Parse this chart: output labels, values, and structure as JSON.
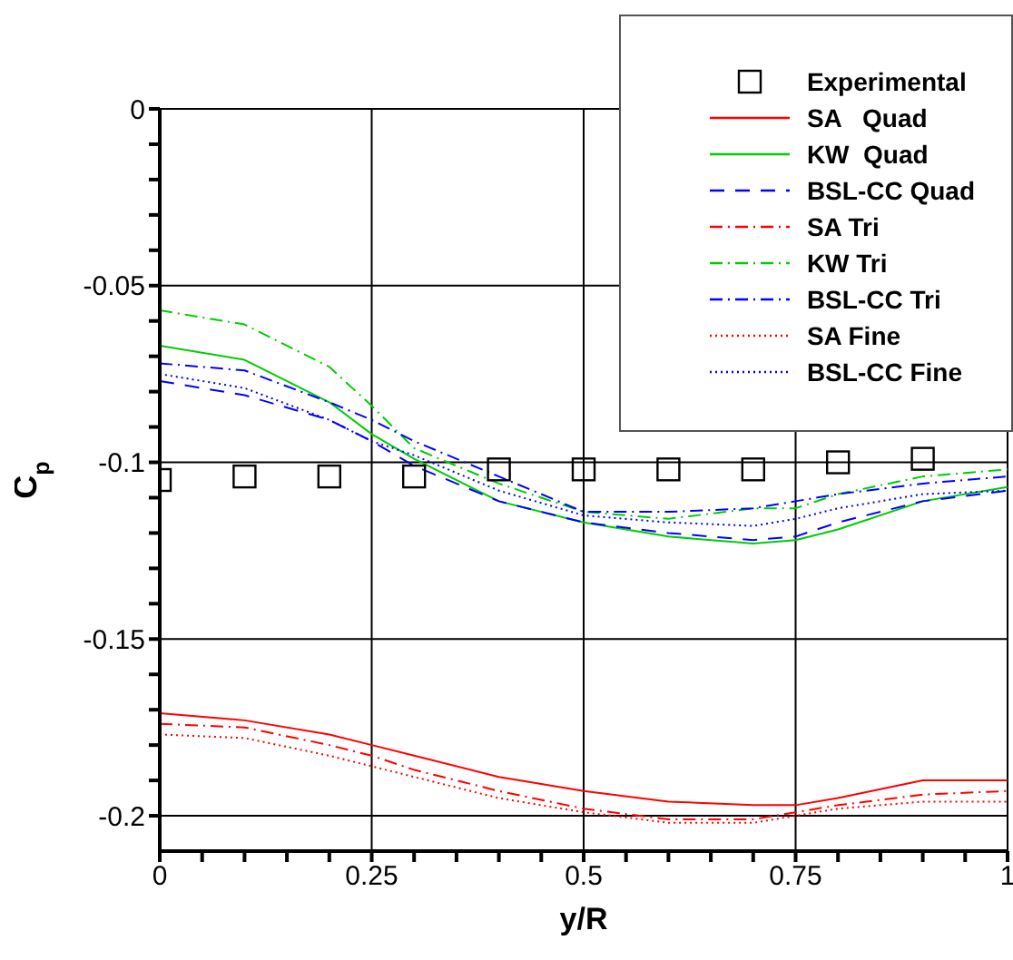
{
  "chart_data": {
    "type": "line",
    "xlabel": "y/R",
    "ylabel": "C$_{p}$",
    "x": [
      0,
      0.1,
      0.2,
      0.25,
      0.3,
      0.4,
      0.5,
      0.6,
      0.7,
      0.75,
      0.8,
      0.9,
      1
    ],
    "xlim": [
      0,
      1
    ],
    "xticks": [
      0,
      {
        "value": 0.05,
        "label": null
      },
      {
        "value": 0.1,
        "label": null
      },
      {
        "value": 0.15,
        "label": null
      },
      {
        "value": 0.2,
        "label": null
      },
      0.25,
      {
        "value": 0.3,
        "label": null
      },
      {
        "value": 0.35,
        "label": null
      },
      {
        "value": 0.4,
        "label": null
      },
      {
        "value": 0.45,
        "label": null
      },
      0.5,
      {
        "value": 0.55,
        "label": null
      },
      {
        "value": 0.6,
        "label": null
      },
      {
        "value": 0.65,
        "label": null
      },
      {
        "value": 0.7,
        "label": null
      },
      0.75,
      {
        "value": 0.8,
        "label": null
      },
      {
        "value": 0.85,
        "label": null
      },
      {
        "value": 0.9,
        "label": null
      },
      {
        "value": 0.95,
        "label": null
      },
      1
    ],
    "ylim": [
      -0.21,
      0
    ],
    "yticks": [
      0,
      {
        "value": -0.01,
        "label": null
      },
      {
        "value": -0.02,
        "label": null
      },
      {
        "value": -0.03,
        "label": null
      },
      {
        "value": -0.04,
        "label": null
      },
      -0.05,
      {
        "value": -0.06,
        "label": null
      },
      {
        "value": -0.07,
        "label": null
      },
      {
        "value": -0.08,
        "label": null
      },
      {
        "value": -0.09,
        "label": null
      },
      -0.1,
      {
        "value": -0.11,
        "label": null
      },
      {
        "value": -0.12,
        "label": null
      },
      {
        "value": -0.13,
        "label": null
      },
      {
        "value": -0.14,
        "label": null
      },
      -0.15,
      {
        "value": -0.16,
        "label": null
      },
      {
        "value": -0.17,
        "label": null
      },
      {
        "value": -0.18,
        "label": null
      },
      {
        "value": -0.19,
        "label": null
      },
      -0.2
    ],
    "grid": true,
    "legend": "top right",
    "series": [
      {
        "name": "Experimental",
        "type": "scatter",
        "marker": "square",
        "color": "#000000",
        "x": [
          0,
          0.1,
          0.2,
          0.3,
          0.4,
          0.5,
          0.6,
          0.7,
          0.8,
          0.9
        ],
        "values": [
          -0.105,
          -0.104,
          -0.104,
          -0.104,
          -0.102,
          -0.102,
          -0.102,
          -0.102,
          -0.1,
          -0.099
        ]
      },
      {
        "name": "SA   Quad",
        "color": "#ff0000",
        "line_style": "solid",
        "values": [
          -0.171,
          -0.173,
          -0.177,
          -0.18,
          -0.183,
          -0.189,
          -0.193,
          -0.196,
          -0.197,
          -0.197,
          -0.195,
          -0.19,
          -0.19
        ]
      },
      {
        "name": "KW  Quad",
        "color": "#00cc00",
        "line_style": "solid",
        "values": [
          -0.067,
          -0.071,
          -0.083,
          -0.092,
          -0.099,
          -0.111,
          -0.117,
          -0.121,
          -0.123,
          -0.122,
          -0.119,
          -0.111,
          -0.107
        ]
      },
      {
        "name": "BSL-CC Quad",
        "color": "#0000ff",
        "line_style": "dashed",
        "values": [
          -0.077,
          -0.081,
          -0.088,
          -0.094,
          -0.101,
          -0.111,
          -0.117,
          -0.12,
          -0.122,
          -0.121,
          -0.117,
          -0.111,
          -0.108
        ]
      },
      {
        "name": "SA Tri",
        "color": "#ff0000",
        "line_style": "dashdot",
        "values": [
          -0.174,
          -0.175,
          -0.18,
          -0.183,
          -0.187,
          -0.193,
          -0.198,
          -0.201,
          -0.201,
          -0.199,
          -0.197,
          -0.194,
          -0.193
        ]
      },
      {
        "name": "KW Tri",
        "color": "#00cc00",
        "line_style": "dashdot",
        "values": [
          -0.057,
          -0.061,
          -0.073,
          -0.084,
          -0.096,
          -0.106,
          -0.114,
          -0.116,
          -0.113,
          -0.113,
          -0.109,
          -0.104,
          -0.102
        ]
      },
      {
        "name": "BSL-CC Tri",
        "color": "#0000ff",
        "line_style": "dashdot",
        "values": [
          -0.072,
          -0.074,
          -0.083,
          -0.088,
          -0.094,
          -0.104,
          -0.114,
          -0.114,
          -0.113,
          -0.111,
          -0.109,
          -0.106,
          -0.104
        ]
      },
      {
        "name": "SA Fine",
        "color": "#ff0000",
        "line_style": "dotted",
        "values": [
          -0.177,
          -0.178,
          -0.183,
          -0.186,
          -0.189,
          -0.195,
          -0.199,
          -0.202,
          -0.202,
          -0.2,
          -0.198,
          -0.196,
          -0.196
        ]
      },
      {
        "name": "BSL-CC Fine",
        "color": "#0000ff",
        "line_style": "dotted",
        "values": [
          -0.075,
          -0.079,
          -0.088,
          -0.094,
          -0.098,
          -0.108,
          -0.115,
          -0.117,
          -0.118,
          -0.116,
          -0.113,
          -0.109,
          -0.108
        ]
      }
    ]
  }
}
